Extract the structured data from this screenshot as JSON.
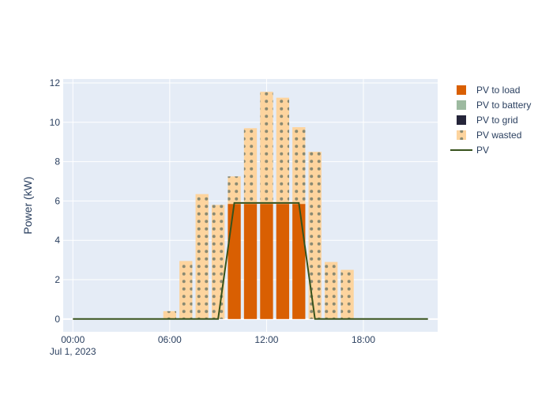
{
  "chart_data": {
    "type": "bar",
    "barmode": "stack",
    "x_hours": [
      0,
      1,
      2,
      3,
      4,
      5,
      6,
      7,
      8,
      9,
      10,
      11,
      12,
      13,
      14,
      15,
      16,
      17,
      18,
      19,
      20,
      21,
      22
    ],
    "x_ticks": [
      {
        "hour": 0,
        "label": "00:00",
        "sublabel": "Jul 1, 2023"
      },
      {
        "hour": 6,
        "label": "06:00",
        "sublabel": ""
      },
      {
        "hour": 12,
        "label": "12:00",
        "sublabel": ""
      },
      {
        "hour": 18,
        "label": "18:00",
        "sublabel": ""
      }
    ],
    "xlim": [
      -0.6,
      22.6
    ],
    "ylabel": "Power (kW)",
    "ylim": [
      -0.65,
      12.2
    ],
    "y_ticks": [
      0,
      2,
      4,
      6,
      8,
      10,
      12
    ],
    "grid": true,
    "legend_position": "right",
    "series": [
      {
        "name": "PV to load",
        "kind": "bar",
        "color": "#d95f02",
        "values": [
          0,
          0,
          0,
          0,
          0,
          0,
          0,
          0,
          0,
          0,
          5.85,
          5.85,
          5.85,
          5.85,
          5.85,
          0,
          0,
          0,
          0,
          0,
          0,
          0,
          0
        ]
      },
      {
        "name": "PV to battery",
        "kind": "bar",
        "color": "#9dbaa0",
        "values": [
          0,
          0,
          0,
          0,
          0,
          0,
          0,
          0,
          0,
          0,
          0,
          0,
          0,
          0,
          0,
          0,
          0,
          0,
          0,
          0,
          0,
          0,
          0
        ]
      },
      {
        "name": "PV to grid",
        "kind": "bar",
        "color": "#25253a",
        "values": [
          0,
          0,
          0,
          0,
          0,
          0,
          0,
          0,
          0,
          0,
          0,
          0,
          0,
          0,
          0,
          0,
          0,
          0,
          0,
          0,
          0,
          0,
          0
        ]
      },
      {
        "name": "PV wasted",
        "kind": "bar",
        "color": "#fdd49e",
        "pattern": "dots",
        "values": [
          0,
          0,
          0,
          0,
          0,
          0,
          0.4,
          2.95,
          6.35,
          5.8,
          1.4,
          3.85,
          5.7,
          5.4,
          3.9,
          8.5,
          2.9,
          2.5,
          0,
          0,
          0,
          0,
          0
        ]
      },
      {
        "name": "PV",
        "kind": "line",
        "color": "#37521c",
        "values": [
          0,
          0,
          0,
          0,
          0,
          0,
          0,
          0,
          0,
          0,
          5.9,
          5.9,
          5.9,
          5.9,
          5.9,
          0,
          0,
          0,
          0,
          0,
          0,
          0,
          0
        ]
      }
    ]
  }
}
